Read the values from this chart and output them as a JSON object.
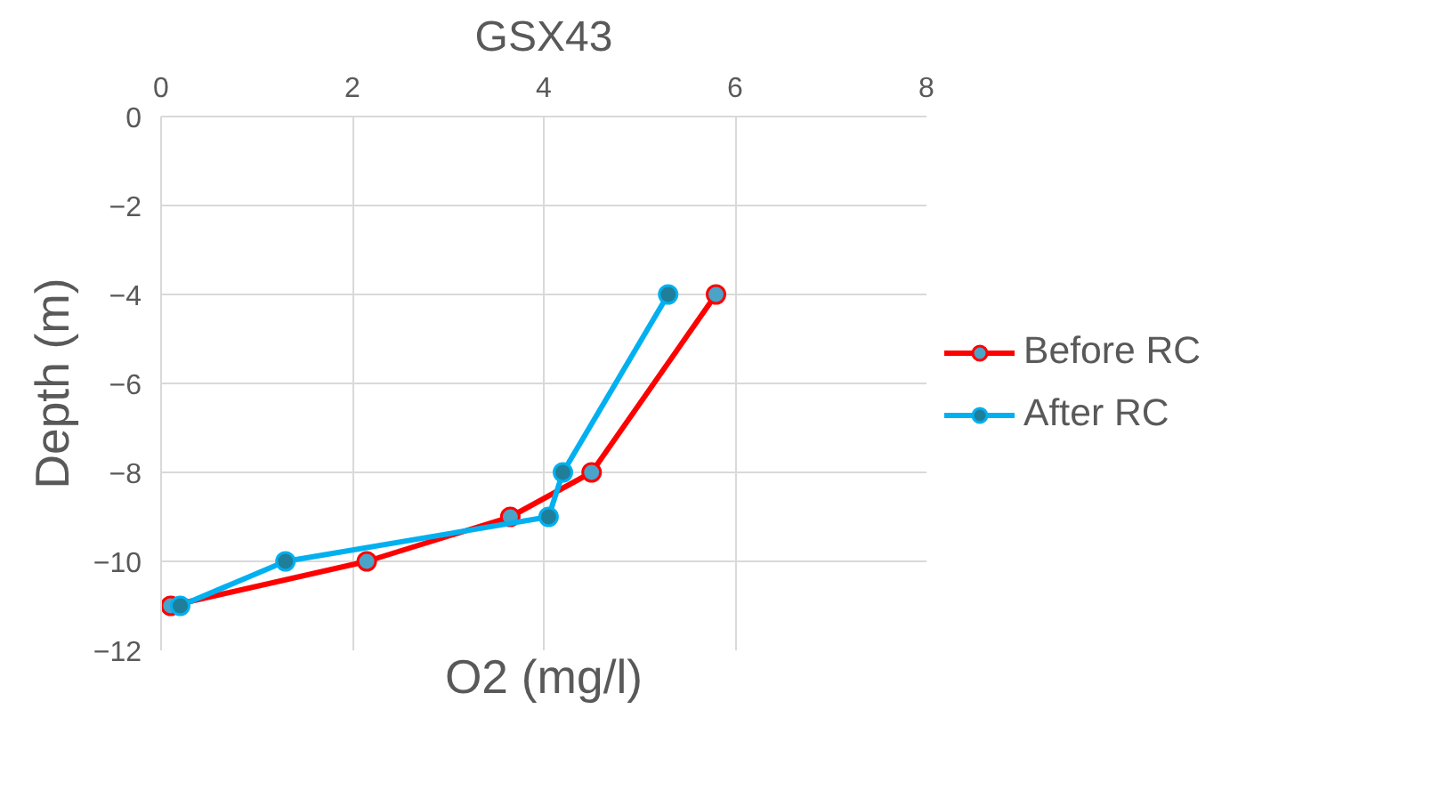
{
  "chart_data": {
    "type": "line",
    "title": "GSX43",
    "xlabel": "O2 (mg/l)",
    "ylabel": "Depth (m)",
    "xlim": [
      0,
      8
    ],
    "xticks": [
      0,
      2,
      4,
      6,
      8
    ],
    "ylim": [
      -12,
      0
    ],
    "yticks": [
      -12,
      -10,
      -8,
      -6,
      -4,
      -2,
      0
    ],
    "grid": true,
    "legend": "right",
    "marker": "circle",
    "line_style": "solid",
    "series": [
      {
        "name": "Before RC",
        "color": "#ff0000",
        "x": [
          5.8,
          4.5,
          3.65,
          2.15,
          0.1
        ],
        "values": [
          -4,
          -8,
          -9,
          -10,
          -11
        ]
      },
      {
        "name": "After RC",
        "color": "#00b0f0",
        "x": [
          5.3,
          4.2,
          4.05,
          1.3,
          0.2
        ],
        "values": [
          -4,
          -8,
          -9,
          -10,
          -11
        ]
      }
    ]
  }
}
